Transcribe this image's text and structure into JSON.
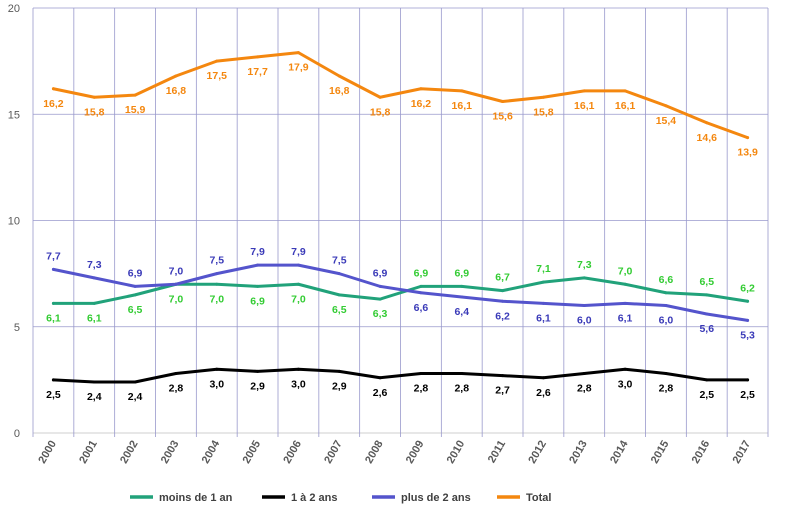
{
  "chart_data": {
    "type": "line",
    "title": "",
    "xlabel": "",
    "ylabel": "",
    "x": [
      "2000",
      "2001",
      "2002",
      "2003",
      "2004",
      "2005",
      "2006",
      "2007",
      "2008",
      "2009",
      "2010",
      "2011",
      "2012",
      "2013",
      "2014",
      "2015",
      "2016",
      "2017"
    ],
    "ylim": [
      0,
      20
    ],
    "yticks": [
      "0",
      "5",
      "10",
      "15",
      "20"
    ],
    "grid": true,
    "legend_position": "bottom",
    "series": [
      {
        "name": "moins de 1 an",
        "color": "#21A27A",
        "values": [
          6.1,
          6.1,
          6.5,
          7.0,
          7.0,
          6.9,
          7.0,
          6.5,
          6.3,
          6.9,
          6.9,
          6.7,
          7.1,
          7.3,
          7.0,
          6.6,
          6.5,
          6.2
        ],
        "labels": [
          "6,1",
          "6,1",
          "6,5",
          "7,0",
          "7,0",
          "6,9",
          "7,0",
          "6,5",
          "6,3",
          "6,9",
          "6,9",
          "6,7",
          "7,1",
          "7,3",
          "7,0",
          "6,6",
          "6,5",
          "6,2"
        ],
        "label_color": "#33CC33"
      },
      {
        "name": "1 à 2 ans",
        "color": "#000000",
        "values": [
          2.5,
          2.4,
          2.4,
          2.8,
          3.0,
          2.9,
          3.0,
          2.9,
          2.6,
          2.8,
          2.8,
          2.7,
          2.6,
          2.8,
          3.0,
          2.8,
          2.5,
          2.5
        ],
        "labels": [
          "2,5",
          "2,4",
          "2,4",
          "2,8",
          "3,0",
          "2,9",
          "3,0",
          "2,9",
          "2,6",
          "2,8",
          "2,8",
          "2,7",
          "2,6",
          "2,8",
          "3,0",
          "2,8",
          "2,5",
          "2,5"
        ],
        "label_color": "#000000"
      },
      {
        "name": "plus de 2 ans",
        "color": "#5454CC",
        "values": [
          7.7,
          7.3,
          6.9,
          7.0,
          7.5,
          7.9,
          7.9,
          7.5,
          6.9,
          6.6,
          6.4,
          6.2,
          6.1,
          6.0,
          6.1,
          6.0,
          5.6,
          5.3
        ],
        "labels": [
          "7,7",
          "7,3",
          "6,9",
          "7,0",
          "7,5",
          "7,9",
          "7,9",
          "7,5",
          "6,9",
          "6,6",
          "6,4",
          "6,2",
          "6,1",
          "6,0",
          "6,1",
          "6,0",
          "5,6",
          "5,3"
        ],
        "label_color": "#3A3AB8"
      },
      {
        "name": "Total",
        "color": "#F4870F",
        "values": [
          16.2,
          15.8,
          15.9,
          16.8,
          17.5,
          17.7,
          17.9,
          16.8,
          15.8,
          16.2,
          16.1,
          15.6,
          15.8,
          16.1,
          16.1,
          15.4,
          14.6,
          13.9
        ],
        "labels": [
          "16,2",
          "15,8",
          "15,9",
          "16,8",
          "17,5",
          "17,7",
          "17,9",
          "16,8",
          "15,8",
          "16,2",
          "16,1",
          "15,6",
          "15,8",
          "16,1",
          "16,1",
          "15,4",
          "14,6",
          "13,9"
        ],
        "label_color": "#F4870F"
      }
    ]
  }
}
